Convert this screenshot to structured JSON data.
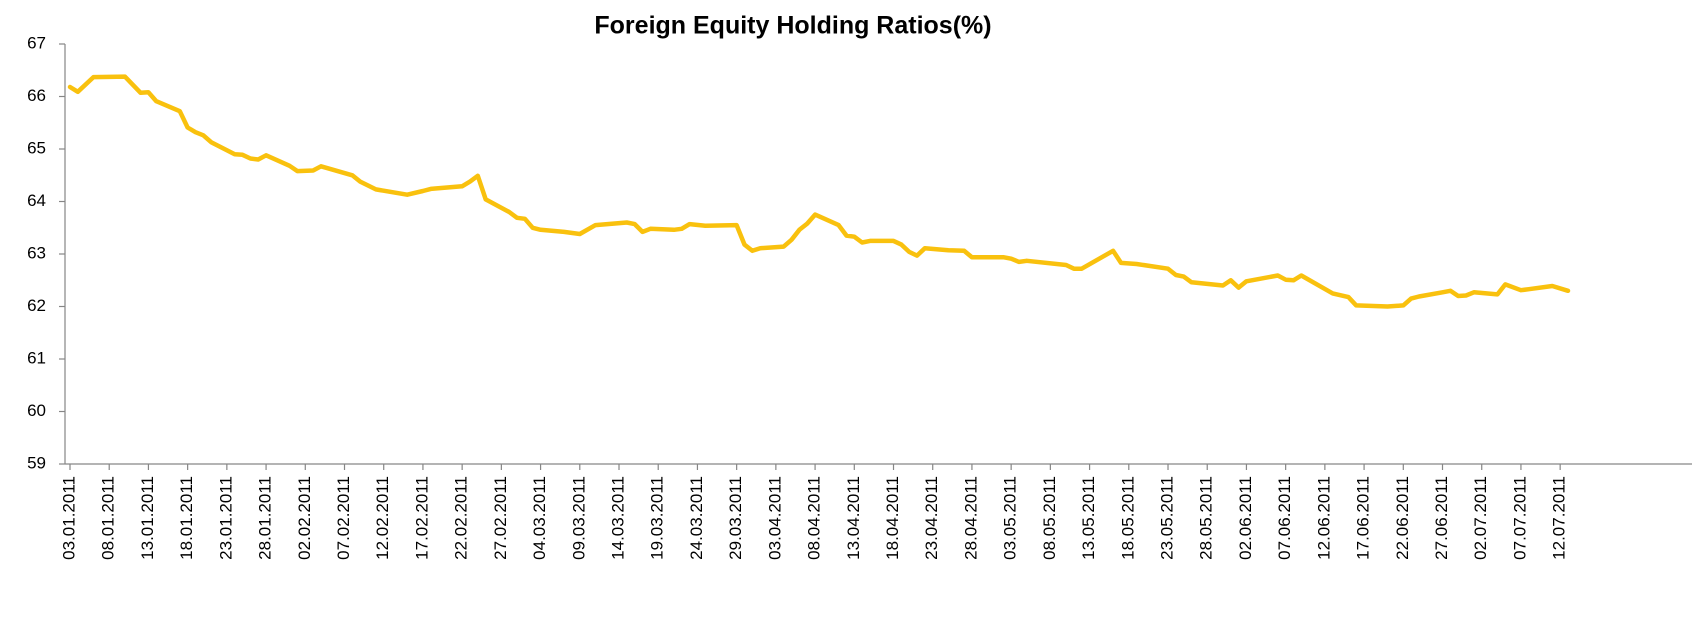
{
  "chart_data": {
    "type": "line",
    "title": "Foreign Equity Holding Ratios(%)",
    "x": [
      "03.01.2011",
      "04.01.2011",
      "06.01.2011",
      "10.01.2011",
      "12.01.2011",
      "13.01.2011",
      "14.01.2011",
      "17.01.2011",
      "18.01.2011",
      "19.01.2011",
      "20.01.2011",
      "21.01.2011",
      "24.01.2011",
      "25.01.2011",
      "26.01.2011",
      "27.01.2011",
      "28.01.2011",
      "31.01.2011",
      "01.02.2011",
      "03.02.2011",
      "04.02.2011",
      "08.02.2011",
      "09.02.2011",
      "11.02.2011",
      "15.02.2011",
      "17.02.2011",
      "18.02.2011",
      "22.02.2011",
      "23.02.2011",
      "24.02.2011",
      "25.02.2011",
      "28.02.2011",
      "01.03.2011",
      "02.03.2011",
      "03.03.2011",
      "04.03.2011",
      "07.03.2011",
      "09.03.2011",
      "11.03.2011",
      "15.03.2011",
      "16.03.2011",
      "17.03.2011",
      "18.03.2011",
      "21.03.2011",
      "22.03.2011",
      "23.03.2011",
      "25.03.2011",
      "29.03.2011",
      "30.03.2011",
      "31.03.2011",
      "01.04.2011",
      "04.04.2011",
      "05.04.2011",
      "06.04.2011",
      "07.04.2011",
      "08.04.2011",
      "11.04.2011",
      "12.04.2011",
      "13.04.2011",
      "14.04.2011",
      "15.04.2011",
      "18.04.2011",
      "19.04.2011",
      "20.04.2011",
      "21.04.2011",
      "22.04.2011",
      "25.04.2011",
      "27.04.2011",
      "28.04.2011",
      "02.05.2011",
      "03.05.2011",
      "04.05.2011",
      "05.05.2011",
      "10.05.2011",
      "11.05.2011",
      "12.05.2011",
      "16.05.2011",
      "17.05.2011",
      "19.05.2011",
      "23.05.2011",
      "24.05.2011",
      "25.05.2011",
      "26.05.2011",
      "30.05.2011",
      "31.05.2011",
      "01.06.2011",
      "02.06.2011",
      "06.06.2011",
      "07.06.2011",
      "08.06.2011",
      "09.06.2011",
      "13.06.2011",
      "15.06.2011",
      "16.06.2011",
      "20.06.2011",
      "22.06.2011",
      "23.06.2011",
      "24.06.2011",
      "27.06.2011",
      "28.06.2011",
      "29.06.2011",
      "30.06.2011",
      "01.07.2011",
      "04.07.2011",
      "05.07.2011",
      "07.07.2011",
      "08.07.2011",
      "11.07.2011",
      "13.07.2011"
    ],
    "values": [
      66.18,
      66.09,
      66.37,
      66.38,
      66.07,
      66.08,
      65.91,
      65.72,
      65.41,
      65.32,
      65.26,
      65.13,
      64.9,
      64.89,
      64.82,
      64.8,
      64.88,
      64.68,
      64.58,
      64.59,
      64.67,
      64.5,
      64.38,
      64.23,
      64.13,
      64.2,
      64.24,
      64.29,
      64.38,
      64.49,
      64.04,
      63.8,
      63.69,
      63.67,
      63.5,
      63.46,
      63.42,
      63.38,
      63.55,
      63.6,
      63.57,
      63.42,
      63.48,
      63.46,
      63.48,
      63.57,
      63.54,
      63.55,
      63.18,
      63.06,
      63.11,
      63.14,
      63.27,
      63.46,
      63.58,
      63.75,
      63.55,
      63.35,
      63.33,
      63.22,
      63.25,
      63.25,
      63.18,
      63.04,
      62.97,
      63.11,
      63.07,
      63.06,
      62.94,
      62.94,
      62.91,
      62.85,
      62.87,
      62.79,
      62.72,
      62.72,
      63.06,
      62.83,
      62.81,
      62.72,
      62.6,
      62.57,
      62.46,
      62.4,
      62.5,
      62.36,
      62.48,
      62.59,
      62.51,
      62.5,
      62.59,
      62.25,
      62.18,
      62.02,
      62.0,
      62.02,
      62.15,
      62.19,
      62.27,
      62.3,
      62.2,
      62.21,
      62.27,
      62.23,
      62.42,
      62.31,
      62.33,
      62.39,
      62.3
    ],
    "color": "#F9C10E",
    "xlim": [
      "03.01.2011",
      "13.07.2011"
    ],
    "xticks": [
      "03.01.2011",
      "08.01.2011",
      "13.01.2011",
      "18.01.2011",
      "23.01.2011",
      "28.01.2011",
      "02.02.2011",
      "07.02.2011",
      "12.02.2011",
      "17.02.2011",
      "22.02.2011",
      "27.02.2011",
      "04.03.2011",
      "09.03.2011",
      "14.03.2011",
      "19.03.2011",
      "24.03.2011",
      "29.03.2011",
      "03.04.2011",
      "08.04.2011",
      "13.04.2011",
      "18.04.2011",
      "23.04.2011",
      "28.04.2011",
      "03.05.2011",
      "08.05.2011",
      "13.05.2011",
      "18.05.2011",
      "23.05.2011",
      "28.05.2011",
      "02.06.2011",
      "07.06.2011",
      "12.06.2011",
      "17.06.2011",
      "22.06.2011",
      "27.06.2011",
      "02.07.2011",
      "07.07.2011",
      "12.07.2011"
    ],
    "ylim": [
      59,
      67
    ],
    "yticks": [
      59,
      60,
      61,
      62,
      63,
      64,
      65,
      66,
      67
    ],
    "grid": false
  }
}
